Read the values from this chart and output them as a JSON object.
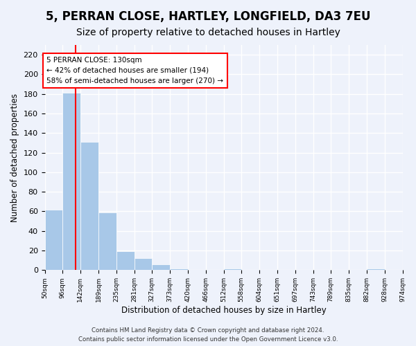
{
  "title": "5, PERRAN CLOSE, HARTLEY, LONGFIELD, DA3 7EU",
  "subtitle": "Size of property relative to detached houses in Hartley",
  "xlabel": "Distribution of detached houses by size in Hartley",
  "ylabel": "Number of detached properties",
  "bin_edges": [
    50,
    96,
    142,
    189,
    235,
    281,
    327,
    373,
    420,
    466,
    512,
    558,
    604,
    651,
    697,
    743,
    789,
    835,
    882,
    928,
    974
  ],
  "counts": [
    62,
    181,
    131,
    59,
    19,
    12,
    6,
    2,
    0,
    0,
    2,
    0,
    0,
    0,
    0,
    0,
    0,
    0,
    2,
    0
  ],
  "bar_color": "#a8c8e8",
  "red_line_x": 130,
  "ylim": [
    0,
    230
  ],
  "yticks": [
    0,
    20,
    40,
    60,
    80,
    100,
    120,
    140,
    160,
    180,
    200,
    220
  ],
  "annotation_title": "5 PERRAN CLOSE: 130sqm",
  "annotation_line1": "← 42% of detached houses are smaller (194)",
  "annotation_line2": "58% of semi-detached houses are larger (270) →",
  "footnote1": "Contains HM Land Registry data © Crown copyright and database right 2024.",
  "footnote2": "Contains public sector information licensed under the Open Government Licence v3.0.",
  "background_color": "#eef2fb",
  "grid_color": "#ffffff",
  "title_fontsize": 12,
  "subtitle_fontsize": 10
}
